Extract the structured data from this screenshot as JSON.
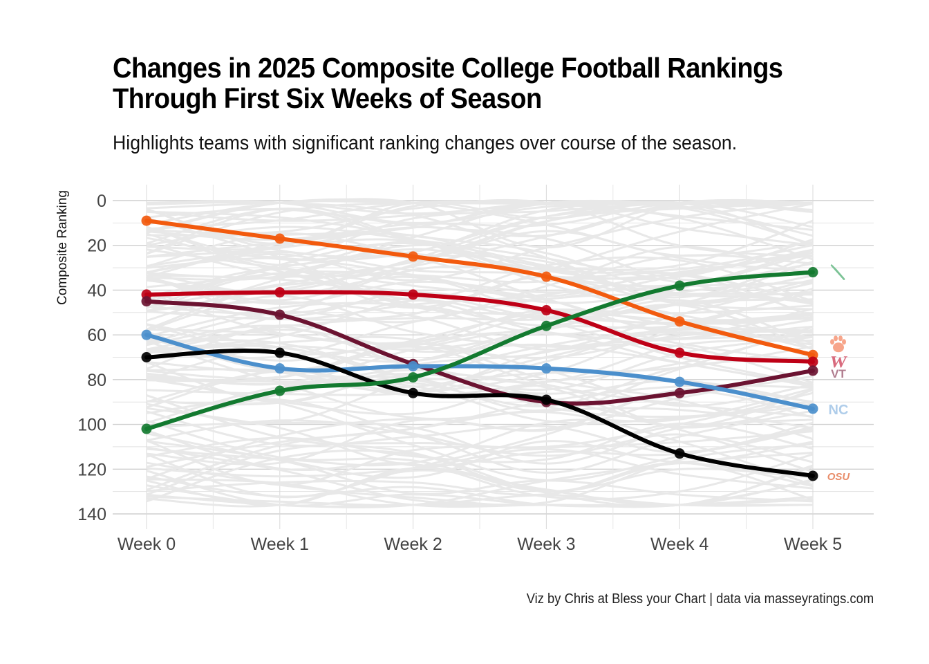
{
  "title_line1": "Changes in 2025 Composite College Football Rankings",
  "title_line2": "Through First Six Weeks of Season",
  "subtitle": "Highlights teams with significant ranking changes over course of the season.",
  "caption": "Viz by Chris at Bless your Chart | data via masseyratings.com",
  "chart_data": {
    "type": "line",
    "title": "Changes in 2025 Composite College Football Rankings Through First Six Weeks of Season",
    "subtitle": "Highlights teams with significant ranking changes over course of the season.",
    "xlabel": "",
    "ylabel": "Composite Ranking",
    "categories": [
      "Week 0",
      "Week 1",
      "Week 2",
      "Week 3",
      "Week 4",
      "Week 5"
    ],
    "y_ticks": [
      0,
      20,
      40,
      60,
      80,
      100,
      120,
      140
    ],
    "ylim": [
      0,
      140
    ],
    "y_reversed": true,
    "grid": true,
    "background_series_note": "All other FBS teams drawn as light gray lines",
    "background_color": "#e8e8e8",
    "series": [
      {
        "name": "Clemson",
        "logo": "tiger-paw",
        "color": "#F25A0E",
        "logo_color": "#F7A58A",
        "values": [
          9,
          17,
          25,
          34,
          54,
          69
        ]
      },
      {
        "name": "Wisconsin",
        "logo": "motion-w",
        "color": "#BE0016",
        "logo_color": "#D96B7E",
        "values": [
          42,
          41,
          42,
          49,
          68,
          72
        ]
      },
      {
        "name": "Virginia Tech",
        "logo": "vt",
        "color": "#6B1331",
        "logo_color": "#B07C8E",
        "values": [
          45,
          51,
          73,
          90,
          86,
          76
        ]
      },
      {
        "name": "North Carolina",
        "logo": "nc-interlock",
        "color": "#4B8FCC",
        "logo_color": "#AFCDEA",
        "values": [
          60,
          75,
          74,
          75,
          81,
          93
        ]
      },
      {
        "name": "Oklahoma State",
        "logo": "osu",
        "color": "#000000",
        "logo_color": "#E98D6A",
        "values": [
          70,
          68,
          86,
          89,
          113,
          123
        ]
      },
      {
        "name": "North Texas",
        "logo": "eagle",
        "color": "#137A30",
        "logo_color": "#7CC396",
        "values": [
          102,
          85,
          79,
          56,
          38,
          32
        ]
      }
    ]
  }
}
